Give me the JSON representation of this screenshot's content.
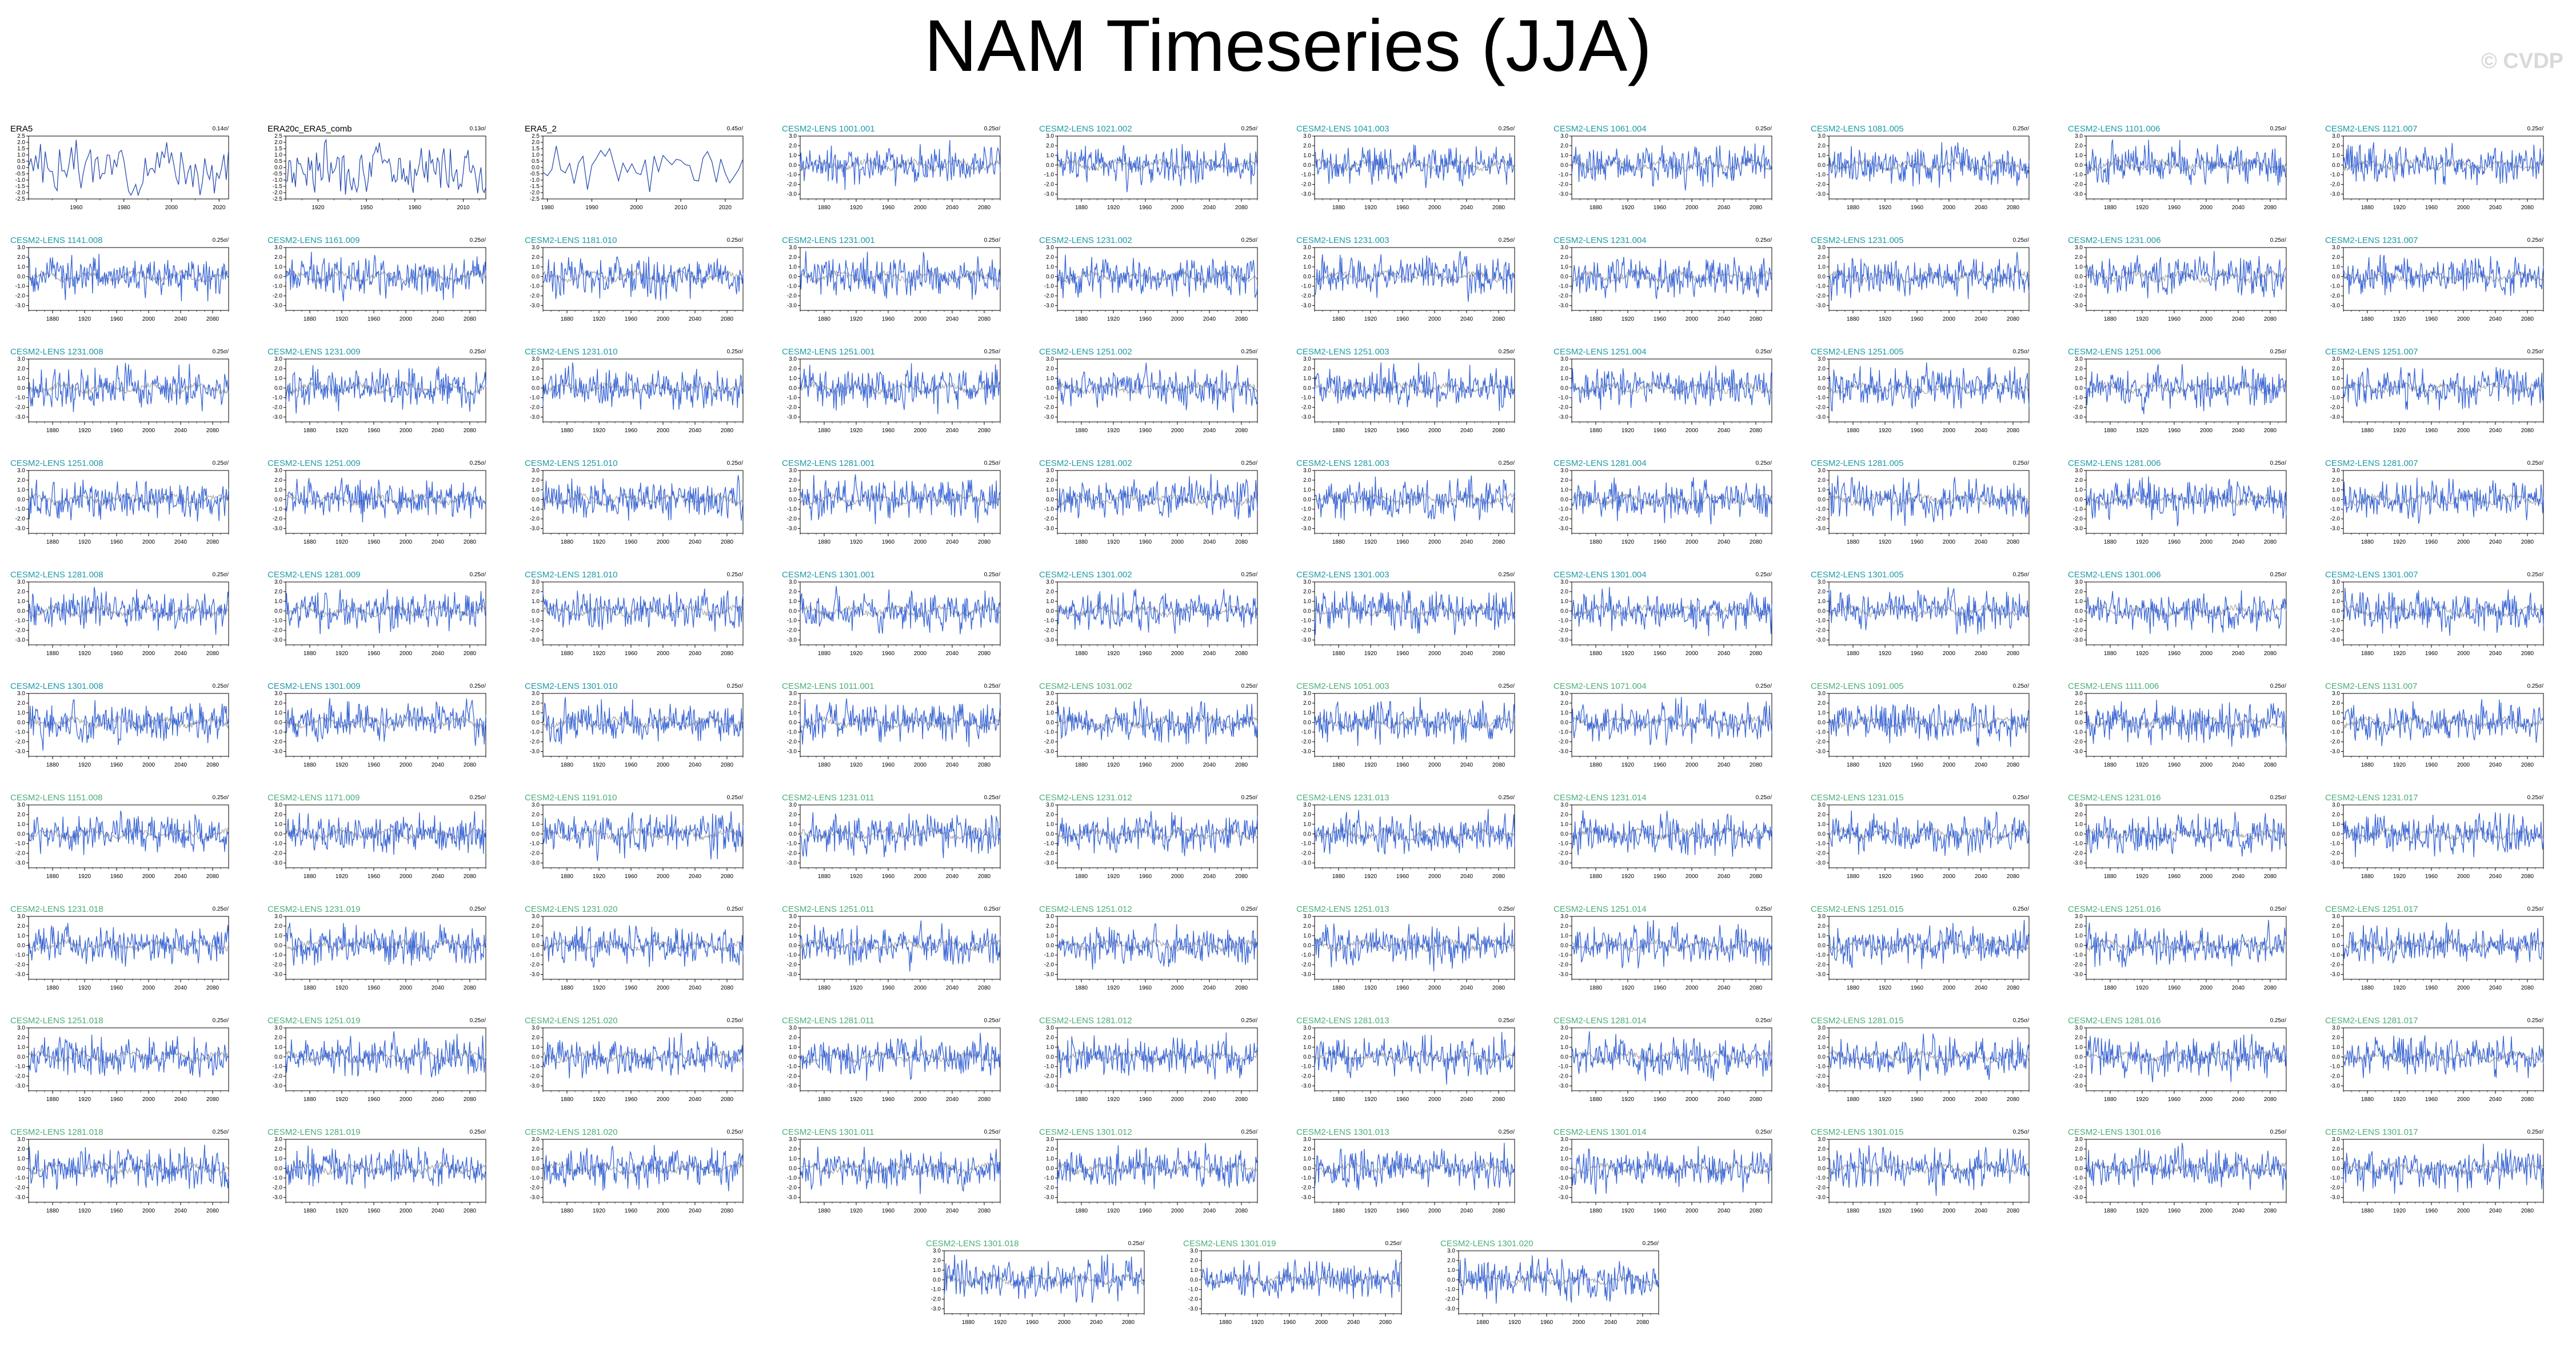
{
  "title": "NAM Timeseries (JJA)",
  "watermark": "© CVDP",
  "colors": {
    "ensemble_line": "#3a66d6",
    "ensemble_mean_line": "#8c8c8c",
    "observation_line": "#2b4fb3",
    "obs_title": "#000000",
    "model_title_a": "#1e9aa8",
    "model_title_b": "#4cae7a"
  },
  "chart_data": {
    "type": "line",
    "grid": false,
    "panels": [
      {
        "title": "ERA5",
        "trend": "0.14σ/",
        "kind": "obs",
        "xticks": [
          1960,
          1980,
          2000,
          2020
        ],
        "xlim": [
          1940,
          2024
        ],
        "yticks": [
          -2.5,
          -2.0,
          -1.5,
          -1.0,
          -0.5,
          0.0,
          0.5,
          1.0,
          1.5,
          2.0,
          2.5
        ],
        "ylim": [
          -2.5,
          2.5
        ],
        "seed": 3
      },
      {
        "title": "ERA20c_ERA5_comb",
        "trend": "0.13σ/",
        "kind": "obs",
        "xticks": [
          1920,
          1950,
          1980,
          2010
        ],
        "xlim": [
          1900,
          2024
        ],
        "yticks": [
          -2.5,
          -2.0,
          -1.5,
          -1.0,
          -0.5,
          0.0,
          0.5,
          1.0,
          1.5,
          2.0,
          2.5
        ],
        "ylim": [
          -2.5,
          2.5
        ],
        "seed": 7
      },
      {
        "title": "ERA5_2",
        "trend": "0.45σ/",
        "kind": "obs",
        "xticks": [
          1980,
          1990,
          2000,
          2010,
          2020
        ],
        "xlim": [
          1979,
          2024
        ],
        "yticks": [
          -2.5,
          -2.0,
          -1.5,
          -1.0,
          -0.5,
          0.0,
          0.5,
          1.0,
          1.5,
          2.0,
          2.5
        ],
        "ylim": [
          -2.5,
          2.5
        ],
        "seed": 11
      },
      {
        "title": "CESM2-LENS 1001.001",
        "trend": "0.25σ/",
        "kind": "a",
        "seed": 101
      },
      {
        "title": "CESM2-LENS 1021.002",
        "trend": "0.25σ/",
        "kind": "a",
        "seed": 102
      },
      {
        "title": "CESM2-LENS 1041.003",
        "trend": "0.25σ/",
        "kind": "a",
        "seed": 103
      },
      {
        "title": "CESM2-LENS 1061.004",
        "trend": "0.25σ/",
        "kind": "a",
        "seed": 104
      },
      {
        "title": "CESM2-LENS 1081.005",
        "trend": "0.25σ/",
        "kind": "a",
        "seed": 105
      },
      {
        "title": "CESM2-LENS 1101.006",
        "trend": "0.25σ/",
        "kind": "a",
        "seed": 106
      },
      {
        "title": "CESM2-LENS 1121.007",
        "trend": "0.25σ/",
        "kind": "a",
        "seed": 107
      },
      {
        "title": "CESM2-LENS 1141.008",
        "trend": "0.25σ/",
        "kind": "a",
        "seed": 108
      },
      {
        "title": "CESM2-LENS 1161.009",
        "trend": "0.25σ/",
        "kind": "a",
        "seed": 109
      },
      {
        "title": "CESM2-LENS 1181.010",
        "trend": "0.25σ/",
        "kind": "a",
        "seed": 110
      },
      {
        "title": "CESM2-LENS 1231.001",
        "trend": "0.25σ/",
        "kind": "a",
        "seed": 111
      },
      {
        "title": "CESM2-LENS 1231.002",
        "trend": "0.25σ/",
        "kind": "a",
        "seed": 112
      },
      {
        "title": "CESM2-LENS 1231.003",
        "trend": "0.25σ/",
        "kind": "a",
        "seed": 113
      },
      {
        "title": "CESM2-LENS 1231.004",
        "trend": "0.25σ/",
        "kind": "a",
        "seed": 114
      },
      {
        "title": "CESM2-LENS 1231.005",
        "trend": "0.25σ/",
        "kind": "a",
        "seed": 115
      },
      {
        "title": "CESM2-LENS 1231.006",
        "trend": "0.25σ/",
        "kind": "a",
        "seed": 116
      },
      {
        "title": "CESM2-LENS 1231.007",
        "trend": "0.25σ/",
        "kind": "a",
        "seed": 117
      },
      {
        "title": "CESM2-LENS 1231.008",
        "trend": "0.25σ/",
        "kind": "a",
        "seed": 118
      },
      {
        "title": "CESM2-LENS 1231.009",
        "trend": "0.25σ/",
        "kind": "a",
        "seed": 119
      },
      {
        "title": "CESM2-LENS 1231.010",
        "trend": "0.25σ/",
        "kind": "a",
        "seed": 120
      },
      {
        "title": "CESM2-LENS 1251.001",
        "trend": "0.25σ/",
        "kind": "a",
        "seed": 121
      },
      {
        "title": "CESM2-LENS 1251.002",
        "trend": "0.25σ/",
        "kind": "a",
        "seed": 122
      },
      {
        "title": "CESM2-LENS 1251.003",
        "trend": "0.25σ/",
        "kind": "a",
        "seed": 123
      },
      {
        "title": "CESM2-LENS 1251.004",
        "trend": "0.25σ/",
        "kind": "a",
        "seed": 124
      },
      {
        "title": "CESM2-LENS 1251.005",
        "trend": "0.25σ/",
        "kind": "a",
        "seed": 125
      },
      {
        "title": "CESM2-LENS 1251.006",
        "trend": "0.25σ/",
        "kind": "a",
        "seed": 126
      },
      {
        "title": "CESM2-LENS 1251.007",
        "trend": "0.25σ/",
        "kind": "a",
        "seed": 127
      },
      {
        "title": "CESM2-LENS 1251.008",
        "trend": "0.25σ/",
        "kind": "a",
        "seed": 128
      },
      {
        "title": "CESM2-LENS 1251.009",
        "trend": "0.25σ/",
        "kind": "a",
        "seed": 129
      },
      {
        "title": "CESM2-LENS 1251.010",
        "trend": "0.25σ/",
        "kind": "a",
        "seed": 130
      },
      {
        "title": "CESM2-LENS 1281.001",
        "trend": "0.25σ/",
        "kind": "a",
        "seed": 131
      },
      {
        "title": "CESM2-LENS 1281.002",
        "trend": "0.25σ/",
        "kind": "a",
        "seed": 132
      },
      {
        "title": "CESM2-LENS 1281.003",
        "trend": "0.25σ/",
        "kind": "a",
        "seed": 133
      },
      {
        "title": "CESM2-LENS 1281.004",
        "trend": "0.25σ/",
        "kind": "a",
        "seed": 134
      },
      {
        "title": "CESM2-LENS 1281.005",
        "trend": "0.25σ/",
        "kind": "a",
        "seed": 135
      },
      {
        "title": "CESM2-LENS 1281.006",
        "trend": "0.25σ/",
        "kind": "a",
        "seed": 136
      },
      {
        "title": "CESM2-LENS 1281.007",
        "trend": "0.25σ/",
        "kind": "a",
        "seed": 137
      },
      {
        "title": "CESM2-LENS 1281.008",
        "trend": "0.25σ/",
        "kind": "a",
        "seed": 138
      },
      {
        "title": "CESM2-LENS 1281.009",
        "trend": "0.25σ/",
        "kind": "a",
        "seed": 139
      },
      {
        "title": "CESM2-LENS 1281.010",
        "trend": "0.25σ/",
        "kind": "a",
        "seed": 140
      },
      {
        "title": "CESM2-LENS 1301.001",
        "trend": "0.25σ/",
        "kind": "a",
        "seed": 141
      },
      {
        "title": "CESM2-LENS 1301.002",
        "trend": "0.25σ/",
        "kind": "a",
        "seed": 142
      },
      {
        "title": "CESM2-LENS 1301.003",
        "trend": "0.25σ/",
        "kind": "a",
        "seed": 143
      },
      {
        "title": "CESM2-LENS 1301.004",
        "trend": "0.25σ/",
        "kind": "a",
        "seed": 144
      },
      {
        "title": "CESM2-LENS 1301.005",
        "trend": "0.25σ/",
        "kind": "a",
        "seed": 145
      },
      {
        "title": "CESM2-LENS 1301.006",
        "trend": "0.25σ/",
        "kind": "a",
        "seed": 146
      },
      {
        "title": "CESM2-LENS 1301.007",
        "trend": "0.25σ/",
        "kind": "a",
        "seed": 147
      },
      {
        "title": "CESM2-LENS 1301.008",
        "trend": "0.25σ/",
        "kind": "a",
        "seed": 148
      },
      {
        "title": "CESM2-LENS 1301.009",
        "trend": "0.25σ/",
        "kind": "a",
        "seed": 149
      },
      {
        "title": "CESM2-LENS 1301.010",
        "trend": "0.25σ/",
        "kind": "a",
        "seed": 150
      },
      {
        "title": "CESM2-LENS 1011.001",
        "trend": "0.25σ/",
        "kind": "b",
        "seed": 151
      },
      {
        "title": "CESM2-LENS 1031.002",
        "trend": "0.25σ/",
        "kind": "b",
        "seed": 152
      },
      {
        "title": "CESM2-LENS 1051.003",
        "trend": "0.25σ/",
        "kind": "b",
        "seed": 153
      },
      {
        "title": "CESM2-LENS 1071.004",
        "trend": "0.25σ/",
        "kind": "b",
        "seed": 154
      },
      {
        "title": "CESM2-LENS 1091.005",
        "trend": "0.25σ/",
        "kind": "b",
        "seed": 155
      },
      {
        "title": "CESM2-LENS 1111.006",
        "trend": "0.25σ/",
        "kind": "b",
        "seed": 156
      },
      {
        "title": "CESM2-LENS 1131.007",
        "trend": "0.25σ/",
        "kind": "b",
        "seed": 157
      },
      {
        "title": "CESM2-LENS 1151.008",
        "trend": "0.25σ/",
        "kind": "b",
        "seed": 158
      },
      {
        "title": "CESM2-LENS 1171.009",
        "trend": "0.25σ/",
        "kind": "b",
        "seed": 159
      },
      {
        "title": "CESM2-LENS 1191.010",
        "trend": "0.25σ/",
        "kind": "b",
        "seed": 160
      },
      {
        "title": "CESM2-LENS 1231.011",
        "trend": "0.25σ/",
        "kind": "b",
        "seed": 161
      },
      {
        "title": "CESM2-LENS 1231.012",
        "trend": "0.25σ/",
        "kind": "b",
        "seed": 162
      },
      {
        "title": "CESM2-LENS 1231.013",
        "trend": "0.25σ/",
        "kind": "b",
        "seed": 163
      },
      {
        "title": "CESM2-LENS 1231.014",
        "trend": "0.25σ/",
        "kind": "b",
        "seed": 164
      },
      {
        "title": "CESM2-LENS 1231.015",
        "trend": "0.25σ/",
        "kind": "b",
        "seed": 165
      },
      {
        "title": "CESM2-LENS 1231.016",
        "trend": "0.25σ/",
        "kind": "b",
        "seed": 166
      },
      {
        "title": "CESM2-LENS 1231.017",
        "trend": "0.25σ/",
        "kind": "b",
        "seed": 167
      },
      {
        "title": "CESM2-LENS 1231.018",
        "trend": "0.25σ/",
        "kind": "b",
        "seed": 168
      },
      {
        "title": "CESM2-LENS 1231.019",
        "trend": "0.25σ/",
        "kind": "b",
        "seed": 169
      },
      {
        "title": "CESM2-LENS 1231.020",
        "trend": "0.25σ/",
        "kind": "b",
        "seed": 170
      },
      {
        "title": "CESM2-LENS 1251.011",
        "trend": "0.25σ/",
        "kind": "b",
        "seed": 171
      },
      {
        "title": "CESM2-LENS 1251.012",
        "trend": "0.25σ/",
        "kind": "b",
        "seed": 172
      },
      {
        "title": "CESM2-LENS 1251.013",
        "trend": "0.25σ/",
        "kind": "b",
        "seed": 173
      },
      {
        "title": "CESM2-LENS 1251.014",
        "trend": "0.25σ/",
        "kind": "b",
        "seed": 174
      },
      {
        "title": "CESM2-LENS 1251.015",
        "trend": "0.25σ/",
        "kind": "b",
        "seed": 175
      },
      {
        "title": "CESM2-LENS 1251.016",
        "trend": "0.25σ/",
        "kind": "b",
        "seed": 176
      },
      {
        "title": "CESM2-LENS 1251.017",
        "trend": "0.25σ/",
        "kind": "b",
        "seed": 177
      },
      {
        "title": "CESM2-LENS 1251.018",
        "trend": "0.25σ/",
        "kind": "b",
        "seed": 178
      },
      {
        "title": "CESM2-LENS 1251.019",
        "trend": "0.25σ/",
        "kind": "b",
        "seed": 179
      },
      {
        "title": "CESM2-LENS 1251.020",
        "trend": "0.25σ/",
        "kind": "b",
        "seed": 180
      },
      {
        "title": "CESM2-LENS 1281.011",
        "trend": "0.25σ/",
        "kind": "b",
        "seed": 181
      },
      {
        "title": "CESM2-LENS 1281.012",
        "trend": "0.25σ/",
        "kind": "b",
        "seed": 182
      },
      {
        "title": "CESM2-LENS 1281.013",
        "trend": "0.25σ/",
        "kind": "b",
        "seed": 183
      },
      {
        "title": "CESM2-LENS 1281.014",
        "trend": "0.25σ/",
        "kind": "b",
        "seed": 184
      },
      {
        "title": "CESM2-LENS 1281.015",
        "trend": "0.25σ/",
        "kind": "b",
        "seed": 185
      },
      {
        "title": "CESM2-LENS 1281.016",
        "trend": "0.25σ/",
        "kind": "b",
        "seed": 186
      },
      {
        "title": "CESM2-LENS 1281.017",
        "trend": "0.25σ/",
        "kind": "b",
        "seed": 187
      },
      {
        "title": "CESM2-LENS 1281.018",
        "trend": "0.25σ/",
        "kind": "b",
        "seed": 188
      },
      {
        "title": "CESM2-LENS 1281.019",
        "trend": "0.25σ/",
        "kind": "b",
        "seed": 189
      },
      {
        "title": "CESM2-LENS 1281.020",
        "trend": "0.25σ/",
        "kind": "b",
        "seed": 190
      },
      {
        "title": "CESM2-LENS 1301.011",
        "trend": "0.25σ/",
        "kind": "b",
        "seed": 191
      },
      {
        "title": "CESM2-LENS 1301.012",
        "trend": "0.25σ/",
        "kind": "b",
        "seed": 192
      },
      {
        "title": "CESM2-LENS 1301.013",
        "trend": "0.25σ/",
        "kind": "b",
        "seed": 193
      },
      {
        "title": "CESM2-LENS 1301.014",
        "trend": "0.25σ/",
        "kind": "b",
        "seed": 194
      },
      {
        "title": "CESM2-LENS 1301.015",
        "trend": "0.25σ/",
        "kind": "b",
        "seed": 195
      },
      {
        "title": "CESM2-LENS 1301.016",
        "trend": "0.25σ/",
        "kind": "b",
        "seed": 196
      },
      {
        "title": "CESM2-LENS 1301.017",
        "trend": "0.25σ/",
        "kind": "b",
        "seed": 197
      },
      {
        "title": "CESM2-LENS 1301.018",
        "trend": "0.25σ/",
        "kind": "b",
        "seed": 198
      },
      {
        "title": "CESM2-LENS 1301.019",
        "trend": "0.25σ/",
        "kind": "b",
        "seed": 199
      },
      {
        "title": "CESM2-LENS 1301.020",
        "trend": "0.25σ/",
        "kind": "b",
        "seed": 200
      }
    ],
    "model_defaults": {
      "xticks": [
        1880,
        1920,
        1960,
        2000,
        2040,
        2080
      ],
      "xlim": [
        1850,
        2100
      ],
      "yticks": [
        -3.0,
        -2.0,
        -1.0,
        0.0,
        1.0,
        2.0,
        3.0
      ],
      "ylim": [
        -3.5,
        3.0
      ]
    }
  }
}
